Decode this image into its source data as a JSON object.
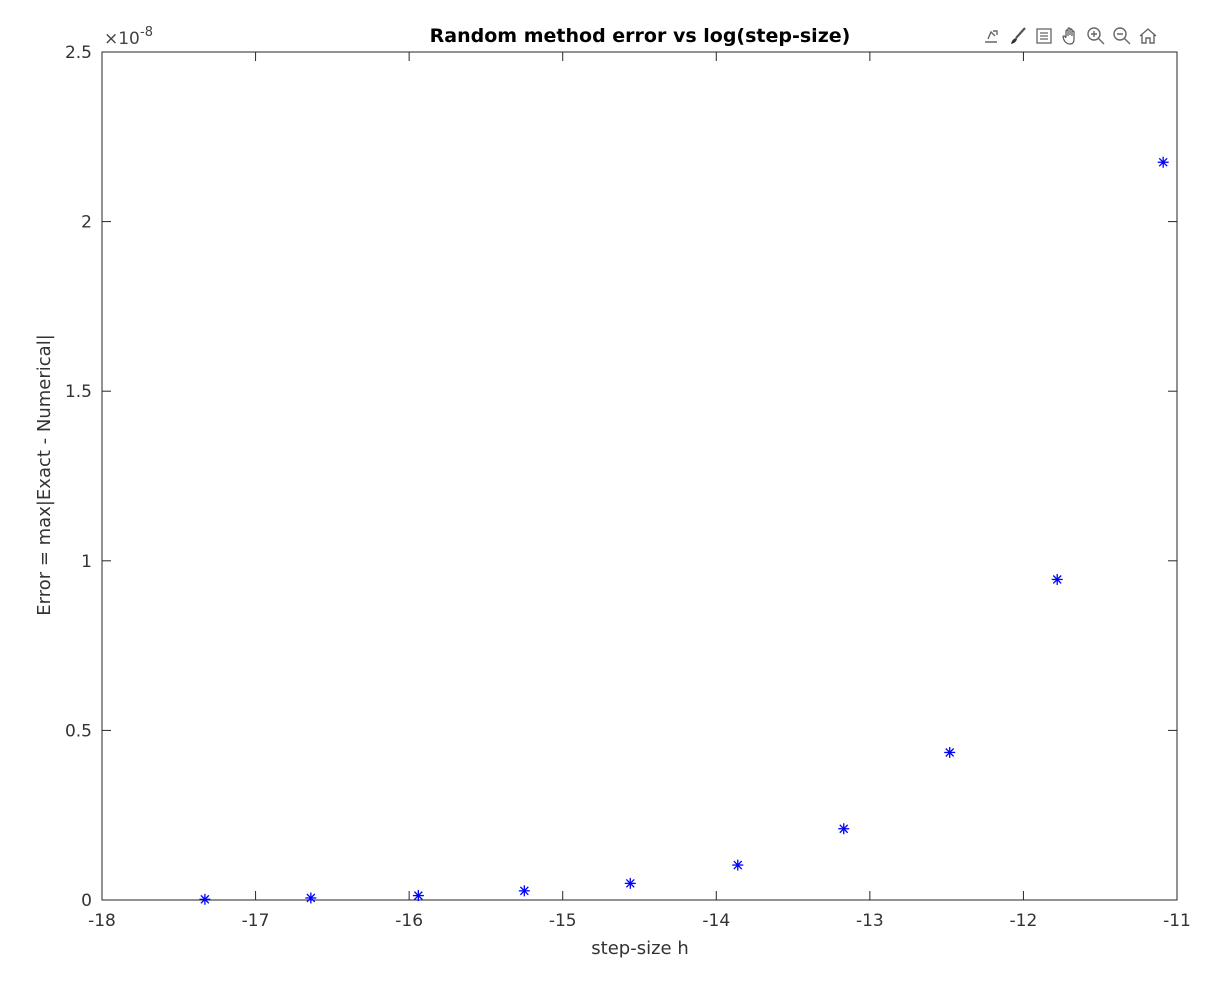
{
  "toolbar": {
    "items": [
      {
        "name": "export-icon"
      },
      {
        "name": "brush-icon"
      },
      {
        "name": "legend-icon"
      },
      {
        "name": "pan-icon"
      },
      {
        "name": "zoom-in-icon"
      },
      {
        "name": "zoom-out-icon"
      },
      {
        "name": "home-icon"
      }
    ]
  },
  "chart_data": {
    "type": "scatter",
    "title": "Random method error vs log(step-size)",
    "xlabel": "step-size h",
    "ylabel": "Error = max|Exact - Numerical|",
    "y_exponent_label": "×10",
    "y_exponent_power": "-8",
    "xlim": [
      -18,
      -11
    ],
    "ylim": [
      0,
      2.5
    ],
    "xticks": [
      -18,
      -17,
      -16,
      -15,
      -14,
      -13,
      -12,
      -11
    ],
    "xtick_labels": [
      "-18",
      "-17",
      "-16",
      "-15",
      "-14",
      "-13",
      "-12",
      "-11"
    ],
    "yticks": [
      0,
      0.5,
      1,
      1.5,
      2,
      2.5
    ],
    "ytick_labels": [
      "0",
      "0.5",
      "1",
      "1.5",
      "2",
      "2.5"
    ],
    "grid": false,
    "marker": "*",
    "series": [
      {
        "color": "#0000ff",
        "x": [
          -17.33,
          -16.64,
          -15.94,
          -15.25,
          -14.56,
          -13.86,
          -13.17,
          -12.48,
          -11.78,
          -11.09
        ],
        "y": [
          0.002,
          0.006,
          0.013,
          0.027,
          0.049,
          0.103,
          0.21,
          0.435,
          0.945,
          2.175
        ]
      }
    ]
  }
}
